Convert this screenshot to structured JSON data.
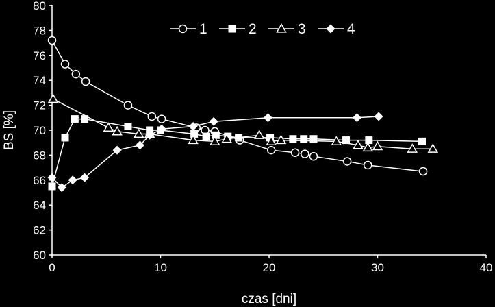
{
  "chart_data": {
    "type": "line",
    "xlabel": "czas [dni]",
    "ylabel": "BS [%]",
    "xlim": [
      0,
      40
    ],
    "ylim": [
      60,
      80
    ],
    "xticks": [
      0,
      10,
      20,
      30,
      40
    ],
    "yticks": [
      60,
      62,
      64,
      66,
      68,
      70,
      72,
      74,
      76,
      78,
      80
    ],
    "grid": false,
    "legend_position": "top-right",
    "series": [
      {
        "name": "1",
        "marker": "circle-open",
        "x": [
          0,
          1.2,
          2.2,
          3.1,
          7,
          9.2,
          10.1,
          13.3,
          14.1,
          15,
          17.3,
          20.2,
          22.4,
          23.3,
          24.1,
          27.2,
          29.1,
          34.2
        ],
        "y": [
          77.2,
          75.3,
          74.5,
          73.9,
          72.0,
          71.1,
          70.9,
          70.2,
          70.0,
          69.9,
          69.2,
          68.4,
          68.2,
          68.1,
          67.9,
          67.5,
          67.2,
          66.7
        ]
      },
      {
        "name": "2",
        "marker": "square",
        "x": [
          0,
          1.2,
          2.1,
          3,
          7,
          9,
          10,
          13.1,
          14.2,
          15.1,
          16.2,
          17.2,
          20.1,
          22.2,
          23.2,
          24.1,
          27.1,
          29.2,
          34.1
        ],
        "y": [
          65.5,
          69.4,
          70.9,
          70.9,
          70.3,
          70.0,
          70.0,
          69.7,
          69.5,
          69.6,
          69.5,
          69.4,
          69.4,
          69.3,
          69.3,
          69.3,
          69.2,
          69.2,
          69.1
        ]
      },
      {
        "name": "3",
        "marker": "triangle-open",
        "x": [
          0.1,
          5.2,
          6,
          8,
          9,
          13,
          15,
          16.1,
          19.1,
          20.2,
          21.1,
          26.2,
          28.2,
          29.1,
          30,
          33.2,
          35.1
        ],
        "y": [
          72.5,
          70.2,
          69.9,
          69.7,
          69.7,
          69.2,
          69.1,
          69.3,
          69.6,
          69.1,
          69.2,
          69.1,
          68.8,
          68.6,
          68.7,
          68.5,
          68.5
        ]
      },
      {
        "name": "4",
        "marker": "diamond",
        "x": [
          0,
          0.9,
          1.9,
          3,
          6,
          8.1,
          9,
          10.1,
          13,
          14.9,
          19.9,
          28.1,
          30.1
        ],
        "y": [
          66.2,
          65.4,
          66.0,
          66.2,
          68.4,
          68.8,
          69.6,
          70.1,
          70.3,
          70.7,
          71.0,
          71.0,
          71.1
        ]
      }
    ]
  }
}
